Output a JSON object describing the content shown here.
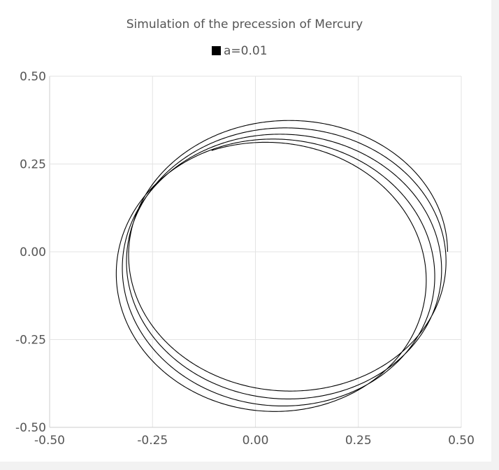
{
  "chart_data": {
    "type": "scatter",
    "title": "Simulation of the precession of Mercury",
    "xlabel": "",
    "ylabel": "",
    "xlim": [
      -0.5,
      0.5
    ],
    "ylim": [
      -0.5,
      0.5
    ],
    "x_ticks": [
      "-0.50",
      "-0.25",
      "0.00",
      "0.25",
      "0.50"
    ],
    "y_ticks": [
      "0.50",
      "0.25",
      "0.00",
      "-0.25",
      "-0.50"
    ],
    "grid": true,
    "legend_position": "top",
    "series": [
      {
        "name": "a=0.01",
        "color": "#000000",
        "orbit_model": {
          "perihelion": 0.3075,
          "aphelion": 0.4667,
          "start_perihelion_angle_deg": 180,
          "start_true_anomaly_deg": 180,
          "precession_deg_per_orbit": -15.5,
          "orbits": 4.5
        }
      }
    ]
  }
}
